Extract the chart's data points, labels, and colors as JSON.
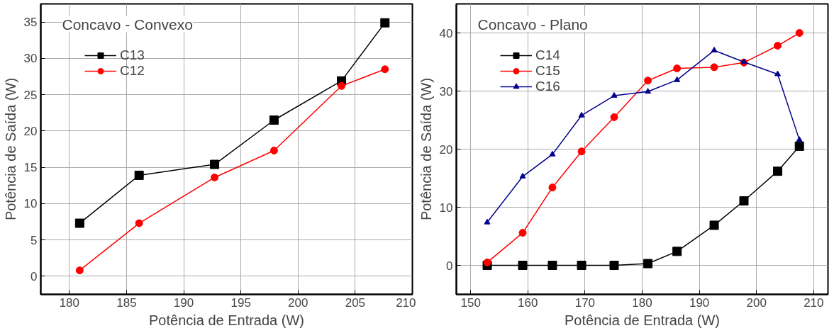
{
  "chart_data": [
    {
      "type": "line",
      "title": "Concavo - Convexo",
      "xlabel": "Potência de Entrada (W)",
      "ylabel": "Potência de Saída (W)",
      "x": [
        180.9,
        186.1,
        192.7,
        197.9,
        203.8,
        207.6
      ],
      "series": [
        {
          "name": "C13",
          "color": "#000000",
          "marker": "square",
          "values": [
            7.3,
            13.9,
            15.4,
            21.5,
            26.9,
            34.9
          ]
        },
        {
          "name": "C12",
          "color": "#ff0000",
          "marker": "circle",
          "values": [
            0.8,
            7.3,
            13.6,
            17.3,
            26.2,
            28.5
          ]
        }
      ],
      "xlim": [
        177.5,
        210
      ],
      "ylim": [
        -2.5,
        37.5
      ],
      "xticks": [
        180,
        185,
        190,
        195,
        200,
        205,
        210
      ],
      "yticks": [
        0,
        5,
        10,
        15,
        20,
        25,
        30,
        35
      ],
      "grid": true,
      "legend": "top left"
    },
    {
      "type": "line",
      "title": "Concavo - Plano",
      "xlabel": "Potência de Entrada (W)",
      "ylabel": "Potência de Saída (W)",
      "x": [
        152.9,
        159.1,
        164.3,
        169.4,
        175.1,
        181.0,
        186.1,
        192.6,
        197.8,
        203.7,
        207.5
      ],
      "series": [
        {
          "name": "C14",
          "color": "#000000",
          "marker": "square",
          "values": [
            0,
            0,
            0,
            0,
            0,
            0.3,
            2.4,
            6.9,
            11.1,
            16.2,
            20.5
          ]
        },
        {
          "name": "C15",
          "color": "#ff0000",
          "marker": "circle",
          "values": [
            0.5,
            5.6,
            13.4,
            19.6,
            25.5,
            31.8,
            33.9,
            34.1,
            34.9,
            37.8,
            40.0
          ]
        },
        {
          "name": "C16",
          "color": "#00008b",
          "marker": "triangle",
          "values": [
            7.4,
            15.3,
            19.1,
            25.8,
            29.2,
            29.9,
            31.9,
            37.0,
            35.0,
            32.9,
            21.6
          ]
        }
      ],
      "xlim": [
        147.5,
        212.5
      ],
      "ylim": [
        -5,
        45
      ],
      "xticks": [
        150,
        160,
        170,
        180,
        190,
        200,
        210
      ],
      "yticks": [
        0,
        10,
        20,
        30,
        40
      ],
      "grid": true,
      "legend": "top left"
    }
  ]
}
